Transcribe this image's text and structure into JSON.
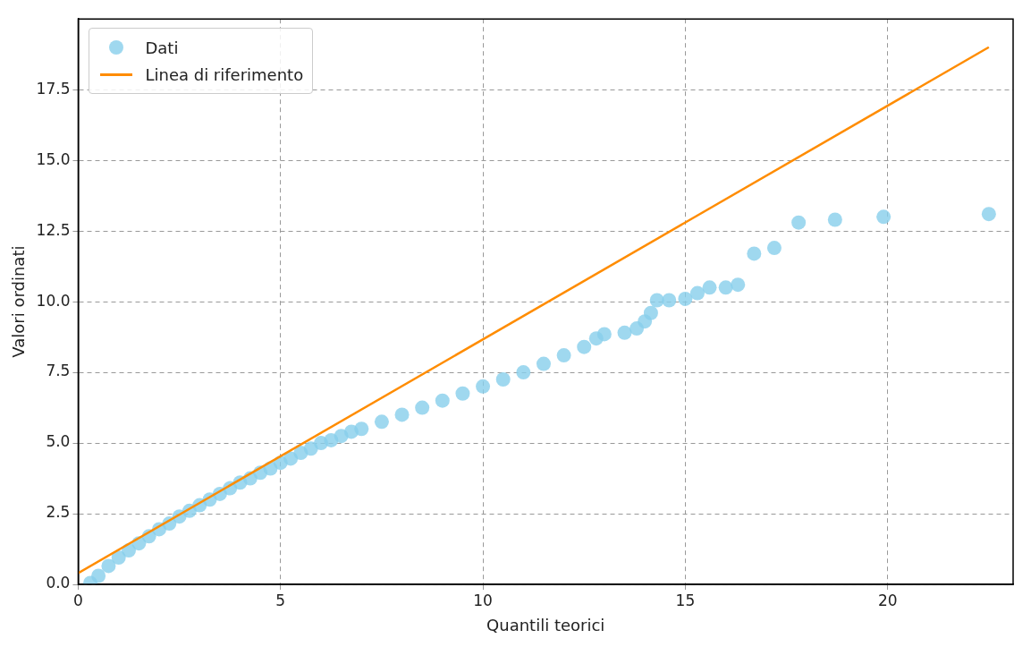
{
  "chart_data": {
    "type": "scatter",
    "xlabel": "Quantili teorici",
    "ylabel": "Valori ordinati",
    "xlim": [
      0,
      23.1
    ],
    "ylim": [
      0,
      20
    ],
    "xticks": [
      0,
      5,
      10,
      15,
      20
    ],
    "yticks": [
      {
        "value": 0,
        "label": "0.0"
      },
      {
        "value": 2.5,
        "label": "2.5"
      },
      {
        "value": 5,
        "label": "5.0"
      },
      {
        "value": 7.5,
        "label": "7.5"
      },
      {
        "value": 10,
        "label": "10.0"
      },
      {
        "value": 12.5,
        "label": "12.5"
      },
      {
        "value": 15,
        "label": "15.0"
      },
      {
        "value": 17.5,
        "label": "17.5"
      }
    ],
    "grid": true,
    "legend": "top left",
    "series": [
      {
        "name": "Dati",
        "marker": "circle",
        "color": "#87ceeb",
        "x": [
          0.3,
          0.5,
          0.75,
          1,
          1.25,
          1.5,
          1.75,
          2,
          2.25,
          2.5,
          2.75,
          3,
          3.25,
          3.5,
          3.75,
          4,
          4.25,
          4.5,
          4.75,
          5,
          5.25,
          5.5,
          5.75,
          6,
          6.25,
          6.5,
          6.75,
          7,
          7.5,
          8,
          8.5,
          9,
          9.5,
          10,
          10.5,
          11,
          11.5,
          12,
          12.5,
          12.8,
          13,
          13.5,
          13.8,
          14,
          14.15,
          14.3,
          14.6,
          15,
          15.3,
          15.6,
          16,
          16.3,
          16.7,
          17.2,
          17.8,
          18.7,
          19.9,
          22.5
        ],
        "values": [
          0.05,
          0.3,
          0.65,
          0.95,
          1.2,
          1.45,
          1.7,
          1.95,
          2.15,
          2.4,
          2.6,
          2.8,
          3.0,
          3.2,
          3.4,
          3.6,
          3.75,
          3.95,
          4.1,
          4.3,
          4.45,
          4.65,
          4.8,
          5.0,
          5.1,
          5.25,
          5.4,
          5.5,
          5.75,
          6.0,
          6.25,
          6.5,
          6.75,
          7.0,
          7.25,
          7.5,
          7.8,
          8.1,
          8.4,
          8.7,
          8.85,
          8.9,
          9.05,
          9.3,
          9.6,
          10.05,
          10.05,
          10.1,
          10.3,
          10.5,
          10.5,
          10.6,
          11.7,
          11.9,
          12.8,
          12.9,
          13.0,
          13.1
        ]
      },
      {
        "name": "Linea di riferimento",
        "type": "line",
        "marker": "none",
        "color": "#ff8c00",
        "x": [
          0,
          22.5
        ],
        "values": [
          0.4,
          19.0
        ]
      }
    ]
  }
}
